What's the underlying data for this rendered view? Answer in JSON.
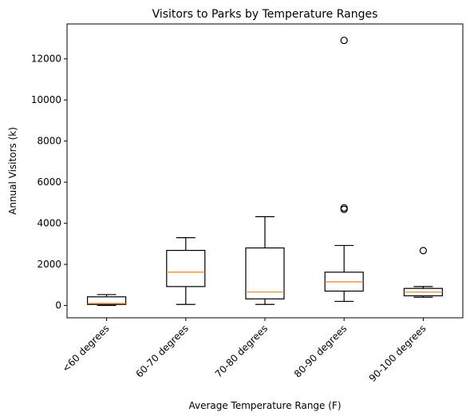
{
  "chart_data": {
    "type": "box",
    "title": "Visitors to Parks by Temperature Ranges",
    "xlabel": "Average Temperature Range (F)",
    "ylabel": "Annual Visitors (k)",
    "ylim": [
      -600,
      13700
    ],
    "yticks": [
      0,
      2000,
      4000,
      6000,
      8000,
      10000,
      12000
    ],
    "grid": false,
    "categories": [
      "<60 degrees",
      "60-70 degrees",
      "70-80 degrees",
      "80-90 degrees",
      "90-100 degrees"
    ],
    "boxes": [
      {
        "whisker_low": 0,
        "q1": 50,
        "median": 100,
        "q3": 420,
        "whisker_high": 530,
        "outliers": []
      },
      {
        "whisker_low": 50,
        "q1": 920,
        "median": 1620,
        "q3": 2680,
        "whisker_high": 3300,
        "outliers": []
      },
      {
        "whisker_low": 50,
        "q1": 320,
        "median": 650,
        "q3": 2800,
        "whisker_high": 4320,
        "outliers": []
      },
      {
        "whisker_low": 200,
        "q1": 700,
        "median": 1150,
        "q3": 1620,
        "whisker_high": 2920,
        "outliers": [
          4680,
          4750,
          12900
        ]
      },
      {
        "whisker_low": 400,
        "q1": 470,
        "median": 650,
        "q3": 830,
        "whisker_high": 920,
        "outliers": [
          2670
        ]
      }
    ],
    "colors": {
      "box": "#000000",
      "median": "#ff7f0e",
      "background": "#ffffff"
    }
  }
}
